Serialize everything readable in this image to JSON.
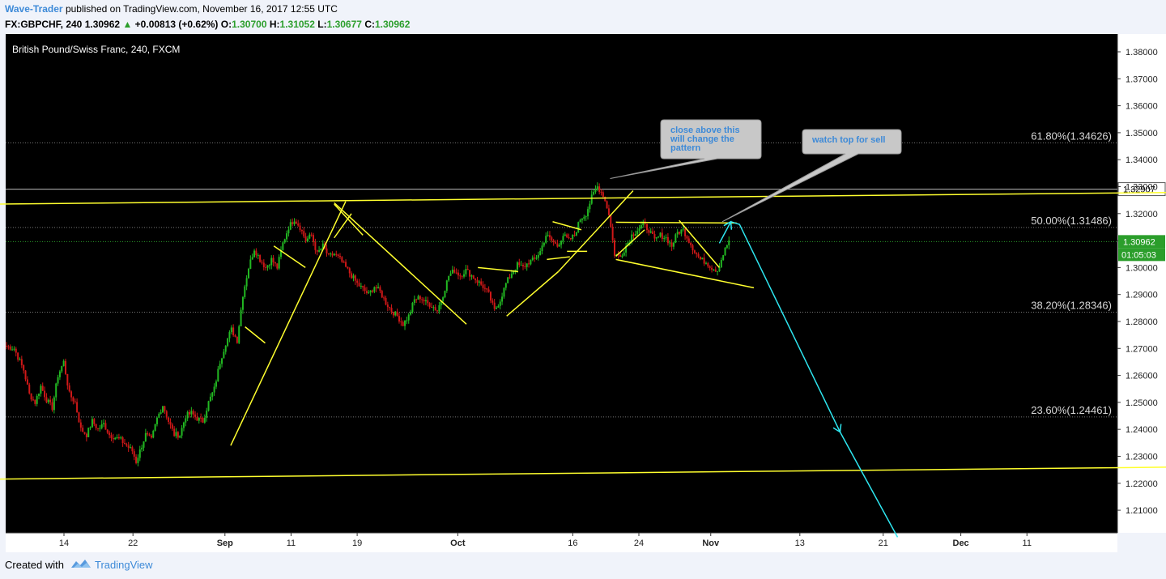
{
  "header": {
    "author": "Wave-Trader",
    "published_text": "published on TradingView.com, November 16, 2017 12:55 UTC",
    "symbol_line": {
      "symbol": "FX:GBPCHF, 240",
      "price": "1.30962",
      "change_icon": "triangle-up-icon",
      "change": "+0.00813 (+0.62%)",
      "open_label": "O:",
      "open": "1.30700",
      "high_label": "H:",
      "high": "1.31052",
      "low_label": "L:",
      "low": "1.30677",
      "close_label": "C:",
      "close": "1.30962"
    }
  },
  "footer": {
    "created_with": "Created with",
    "logo_icon": "tradingview-logo-icon",
    "brand": "TradingView"
  },
  "colors": {
    "background": "#000000",
    "up_candle": "#22b822",
    "down_candle": "#d01818",
    "trendline": "#ffff2e",
    "projection": "#2ee6f0",
    "callout": "#c8c8c8",
    "callout_text": "#3d8ad8",
    "last_price": "#2b9e2b"
  },
  "chart_data": {
    "type": "candlestick",
    "title": "British Pound/Swiss Franc, 240, FXCM",
    "ylim": [
      1.2,
      1.386
    ],
    "y_ticks": [
      "1.38000",
      "1.37000",
      "1.36000",
      "1.35000",
      "1.34000",
      "1.33000",
      "1.32000",
      "1.31000",
      "1.30000",
      "1.29000",
      "1.28000",
      "1.27000",
      "1.26000",
      "1.25000",
      "1.24000",
      "1.23000",
      "1.22000",
      "1.21000"
    ],
    "x_ticks": [
      "14",
      "22",
      "Sep",
      "11",
      "19",
      "Oct",
      "16",
      "24",
      "Nov",
      "13",
      "21",
      "Dec",
      "11"
    ],
    "x_ticks_bold": [
      "Sep",
      "Oct",
      "Nov",
      "Dec"
    ],
    "fib_levels": [
      {
        "label": "61.80%(1.34626)",
        "value": 1.34626
      },
      {
        "label": "50.00%(1.31486)",
        "value": 1.31486
      },
      {
        "label": "38.20%(1.28346)",
        "value": 1.28346
      },
      {
        "label": "23.60%(1.24461)",
        "value": 1.24461
      }
    ],
    "horizontal_line": {
      "label": "1.32907",
      "value": 1.32907
    },
    "last_price": {
      "label": "1.30962",
      "value": 1.30962,
      "countdown": "01:05:03"
    },
    "price_path": [
      [
        0,
        1.271
      ],
      [
        3,
        1.27
      ],
      [
        6,
        1.262
      ],
      [
        8,
        1.253
      ],
      [
        10,
        1.25
      ],
      [
        12,
        1.256
      ],
      [
        14,
        1.251
      ],
      [
        16,
        1.248
      ],
      [
        18,
        1.26
      ],
      [
        20,
        1.265
      ],
      [
        22,
        1.253
      ],
      [
        24,
        1.25
      ],
      [
        26,
        1.24
      ],
      [
        28,
        1.238
      ],
      [
        30,
        1.243
      ],
      [
        32,
        1.24
      ],
      [
        34,
        1.242
      ],
      [
        36,
        1.238
      ],
      [
        38,
        1.237
      ],
      [
        40,
        1.236
      ],
      [
        42,
        1.234
      ],
      [
        44,
        1.232
      ],
      [
        45,
        1.228
      ],
      [
        46,
        1.232
      ],
      [
        48,
        1.238
      ],
      [
        50,
        1.236
      ],
      [
        52,
        1.244
      ],
      [
        54,
        1.249
      ],
      [
        56,
        1.243
      ],
      [
        58,
        1.238
      ],
      [
        60,
        1.238
      ],
      [
        62,
        1.245
      ],
      [
        64,
        1.246
      ],
      [
        66,
        1.244
      ],
      [
        68,
        1.243
      ],
      [
        70,
        1.25
      ],
      [
        72,
        1.255
      ],
      [
        74,
        1.265
      ],
      [
        76,
        1.272
      ],
      [
        78,
        1.277
      ],
      [
        80,
        1.273
      ],
      [
        82,
        1.29
      ],
      [
        84,
        1.3
      ],
      [
        86,
        1.307
      ],
      [
        88,
        1.303
      ],
      [
        90,
        1.3
      ],
      [
        92,
        1.303
      ],
      [
        94,
        1.3
      ],
      [
        96,
        1.309
      ],
      [
        98,
        1.315
      ],
      [
        100,
        1.318
      ],
      [
        102,
        1.315
      ],
      [
        104,
        1.31
      ],
      [
        106,
        1.312
      ],
      [
        108,
        1.305
      ],
      [
        110,
        1.308
      ],
      [
        112,
        1.304
      ],
      [
        114,
        1.305
      ],
      [
        116,
        1.303
      ],
      [
        118,
        1.3
      ],
      [
        120,
        1.297
      ],
      [
        122,
        1.294
      ],
      [
        124,
        1.292
      ],
      [
        126,
        1.29
      ],
      [
        128,
        1.293
      ],
      [
        130,
        1.291
      ],
      [
        132,
        1.287
      ],
      [
        134,
        1.284
      ],
      [
        136,
        1.282
      ],
      [
        138,
        1.279
      ],
      [
        140,
        1.282
      ],
      [
        142,
        1.288
      ],
      [
        144,
        1.289
      ],
      [
        146,
        1.287
      ],
      [
        148,
        1.286
      ],
      [
        150,
        1.284
      ],
      [
        152,
        1.29
      ],
      [
        154,
        1.297
      ],
      [
        156,
        1.299
      ],
      [
        158,
        1.297
      ],
      [
        160,
        1.299
      ],
      [
        162,
        1.297
      ],
      [
        164,
        1.295
      ],
      [
        166,
        1.293
      ],
      [
        168,
        1.29
      ],
      [
        170,
        1.284
      ],
      [
        172,
        1.288
      ],
      [
        174,
        1.294
      ],
      [
        176,
        1.298
      ],
      [
        178,
        1.301
      ],
      [
        180,
        1.3
      ],
      [
        182,
        1.302
      ],
      [
        184,
        1.303
      ],
      [
        186,
        1.306
      ],
      [
        188,
        1.312
      ],
      [
        190,
        1.31
      ],
      [
        192,
        1.308
      ],
      [
        194,
        1.312
      ],
      [
        196,
        1.31
      ],
      [
        198,
        1.312
      ],
      [
        200,
        1.318
      ],
      [
        202,
        1.32
      ],
      [
        204,
        1.326
      ],
      [
        206,
        1.33
      ],
      [
        208,
        1.327
      ],
      [
        210,
        1.32
      ],
      [
        212,
        1.305
      ],
      [
        214,
        1.304
      ],
      [
        216,
        1.308
      ],
      [
        218,
        1.312
      ],
      [
        220,
        1.314
      ],
      [
        222,
        1.316
      ],
      [
        224,
        1.314
      ],
      [
        226,
        1.31
      ],
      [
        228,
        1.312
      ],
      [
        230,
        1.311
      ],
      [
        232,
        1.308
      ],
      [
        234,
        1.313
      ],
      [
        236,
        1.314
      ],
      [
        238,
        1.31
      ],
      [
        240,
        1.306
      ],
      [
        242,
        1.303
      ],
      [
        244,
        1.302
      ],
      [
        246,
        1.3
      ],
      [
        248,
        1.299
      ],
      [
        250,
        1.305
      ],
      [
        252,
        1.31
      ]
    ],
    "trendlines": [
      {
        "name": "upper-channel-line",
        "points": [
          [
            -7,
            1.3235
          ],
          [
            1418,
            1.3385
          ]
        ]
      },
      {
        "name": "lower-channel-line",
        "points": [
          [
            -7,
            1.2215
          ],
          [
            1418,
            1.237
          ]
        ]
      },
      {
        "name": "sep-rally-line",
        "points": [
          [
            78,
            1.234
          ],
          [
            118,
            1.3245
          ]
        ]
      },
      {
        "name": "sep-wedge-line-a",
        "points": [
          [
            83,
            1.278
          ],
          [
            90,
            1.272
          ]
        ]
      },
      {
        "name": "sep-wedge-line-b",
        "points": [
          [
            93,
            1.308
          ],
          [
            104,
            1.3
          ]
        ]
      },
      {
        "name": "sep-top-line-a",
        "points": [
          [
            114,
            1.3235
          ],
          [
            124,
            1.312
          ]
        ]
      },
      {
        "name": "sep-top-line-b",
        "points": [
          [
            114,
            1.311
          ],
          [
            120,
            1.32
          ]
        ]
      },
      {
        "name": "oct-decline-line",
        "points": [
          [
            114,
            1.324
          ],
          [
            160,
            1.279
          ]
        ]
      },
      {
        "name": "oct-flag-upper",
        "points": [
          [
            164,
            1.3
          ],
          [
            178,
            1.2985
          ]
        ]
      },
      {
        "name": "oct-flag-lower",
        "points": [
          [
            174,
            1.282
          ],
          [
            192,
            1.2985
          ]
        ]
      },
      {
        "name": "late-oct-line",
        "points": [
          [
            192,
            1.2985
          ],
          [
            218,
            1.3285
          ]
        ]
      },
      {
        "name": "late-oct-box-a",
        "points": [
          [
            188,
            1.303
          ],
          [
            196,
            1.304
          ]
        ]
      },
      {
        "name": "late-oct-box-b",
        "points": [
          [
            190,
            1.317
          ],
          [
            200,
            1.314
          ]
        ]
      },
      {
        "name": "late-oct-box-c",
        "points": [
          [
            195,
            1.306
          ],
          [
            202,
            1.306
          ]
        ]
      },
      {
        "name": "nov-top-line",
        "points": [
          [
            212,
            1.3168
          ],
          [
            254,
            1.3165
          ]
        ]
      },
      {
        "name": "nov-wedge-upper",
        "points": [
          [
            212,
            1.3042
          ],
          [
            222,
            1.314
          ]
        ]
      },
      {
        "name": "nov-wedge-lower",
        "points": [
          [
            212,
            1.303
          ],
          [
            260,
            1.2925
          ]
        ]
      },
      {
        "name": "nov-wedge-inner",
        "points": [
          [
            234,
            1.3175
          ],
          [
            248,
            1.3
          ]
        ]
      }
    ],
    "projection": {
      "points": [
        [
          248,
          1.309
        ],
        [
          252,
          1.317
        ],
        [
          255,
          1.316
        ],
        [
          290,
          1.239
        ],
        [
          310,
          1.2
        ]
      ]
    },
    "annotations": [
      {
        "text_lines": [
          "close above this",
          "will change the",
          "pattern"
        ],
        "anchor": [
          210,
          1.333
        ]
      },
      {
        "text_lines": [
          "watch top for sell"
        ],
        "anchor": [
          249,
          1.317
        ]
      }
    ]
  }
}
